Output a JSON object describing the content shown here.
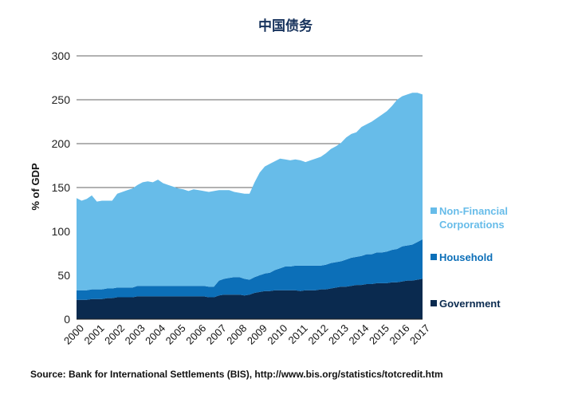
{
  "chart_data": {
    "type": "area",
    "stacked": true,
    "title": "中国债务",
    "xlabel": "",
    "ylabel": "% of GDP",
    "ylim": [
      0,
      300
    ],
    "yticks": [
      0,
      50,
      100,
      150,
      200,
      250,
      300
    ],
    "grid": "horizontal",
    "legend_position": "right",
    "x_tick_labels": [
      "2000",
      "2001",
      "2002",
      "2003",
      "2004",
      "2005",
      "2006",
      "2007",
      "2008",
      "2009",
      "2010",
      "2011",
      "2012",
      "2013",
      "2014",
      "2015",
      "2016",
      "2017"
    ],
    "x_quarters": [
      2000.0,
      2000.25,
      2000.5,
      2000.75,
      2001.0,
      2001.25,
      2001.5,
      2001.75,
      2002.0,
      2002.25,
      2002.5,
      2002.75,
      2003.0,
      2003.25,
      2003.5,
      2003.75,
      2004.0,
      2004.25,
      2004.5,
      2004.75,
      2005.0,
      2005.25,
      2005.5,
      2005.75,
      2006.0,
      2006.25,
      2006.5,
      2006.75,
      2007.0,
      2007.25,
      2007.5,
      2007.75,
      2008.0,
      2008.25,
      2008.5,
      2008.75,
      2009.0,
      2009.25,
      2009.5,
      2009.75,
      2010.0,
      2010.25,
      2010.5,
      2010.75,
      2011.0,
      2011.25,
      2011.5,
      2011.75,
      2012.0,
      2012.25,
      2012.5,
      2012.75,
      2013.0,
      2013.25,
      2013.5,
      2013.75,
      2014.0,
      2014.25,
      2014.5,
      2014.75,
      2015.0,
      2015.25,
      2015.5,
      2015.75,
      2016.0,
      2016.25,
      2016.5,
      2016.75,
      2017.0
    ],
    "series": [
      {
        "name": "Government",
        "color": "#0a2a4f",
        "values": [
          22,
          22,
          22,
          23,
          23,
          23,
          24,
          24,
          25,
          25,
          25,
          25,
          26,
          26,
          26,
          26,
          26,
          26,
          26,
          26,
          26,
          26,
          26,
          26,
          26,
          26,
          25,
          25,
          27,
          28,
          28,
          28,
          28,
          27,
          28,
          30,
          31,
          32,
          32,
          33,
          33,
          33,
          33,
          33,
          32,
          33,
          33,
          33,
          34,
          34,
          35,
          36,
          37,
          37,
          38,
          39,
          39,
          40,
          40,
          41,
          41,
          41,
          42,
          42,
          43,
          44,
          44,
          45,
          46
        ]
      },
      {
        "name": "Household",
        "color": "#0c6fb8",
        "values": [
          11,
          11,
          11,
          11,
          11,
          11,
          11,
          11,
          11,
          11,
          11,
          11,
          12,
          12,
          12,
          12,
          12,
          12,
          12,
          12,
          12,
          12,
          12,
          12,
          12,
          12,
          12,
          12,
          17,
          18,
          19,
          20,
          20,
          19,
          17,
          18,
          19,
          20,
          21,
          23,
          25,
          27,
          27,
          28,
          29,
          28,
          28,
          28,
          27,
          28,
          29,
          29,
          29,
          31,
          32,
          32,
          33,
          34,
          34,
          35,
          35,
          36,
          37,
          38,
          40,
          40,
          41,
          43,
          45
        ]
      },
      {
        "name": "Non-Financial Corporations",
        "color": "#67bce9",
        "values": [
          105,
          102,
          104,
          107,
          100,
          101,
          100,
          100,
          107,
          109,
          111,
          113,
          115,
          118,
          119,
          118,
          121,
          117,
          115,
          113,
          111,
          110,
          108,
          110,
          109,
          108,
          108,
          109,
          103,
          101,
          100,
          97,
          96,
          97,
          98,
          108,
          117,
          122,
          124,
          124,
          125,
          122,
          121,
          121,
          120,
          118,
          120,
          122,
          124,
          127,
          130,
          132,
          135,
          139,
          141,
          142,
          147,
          148,
          151,
          153,
          157,
          160,
          164,
          170,
          171,
          172,
          173,
          170,
          165
        ]
      }
    ]
  },
  "footer": {
    "source": "Source: Bank for International Settlements (BIS), http://www.bis.org/statistics/totcredit.htm"
  }
}
